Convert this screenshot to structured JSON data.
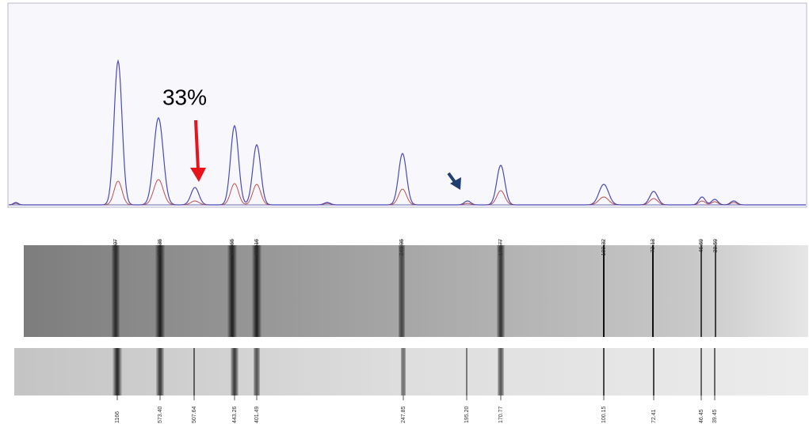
{
  "annotation": "33%",
  "upper_lane_labels": [
    "1307",
    "574.35",
    "445.65",
    "400.16",
    "249.95",
    "170.77",
    "100.32",
    "73.13",
    "46.69",
    "38.59"
  ],
  "lower_lane_labels": [
    "1166",
    "573.40",
    "507.64",
    "443.26",
    "401.49",
    "247.85",
    "195.20",
    "170.77",
    "100.15",
    "72.41",
    "46.45",
    "39.45"
  ]
}
